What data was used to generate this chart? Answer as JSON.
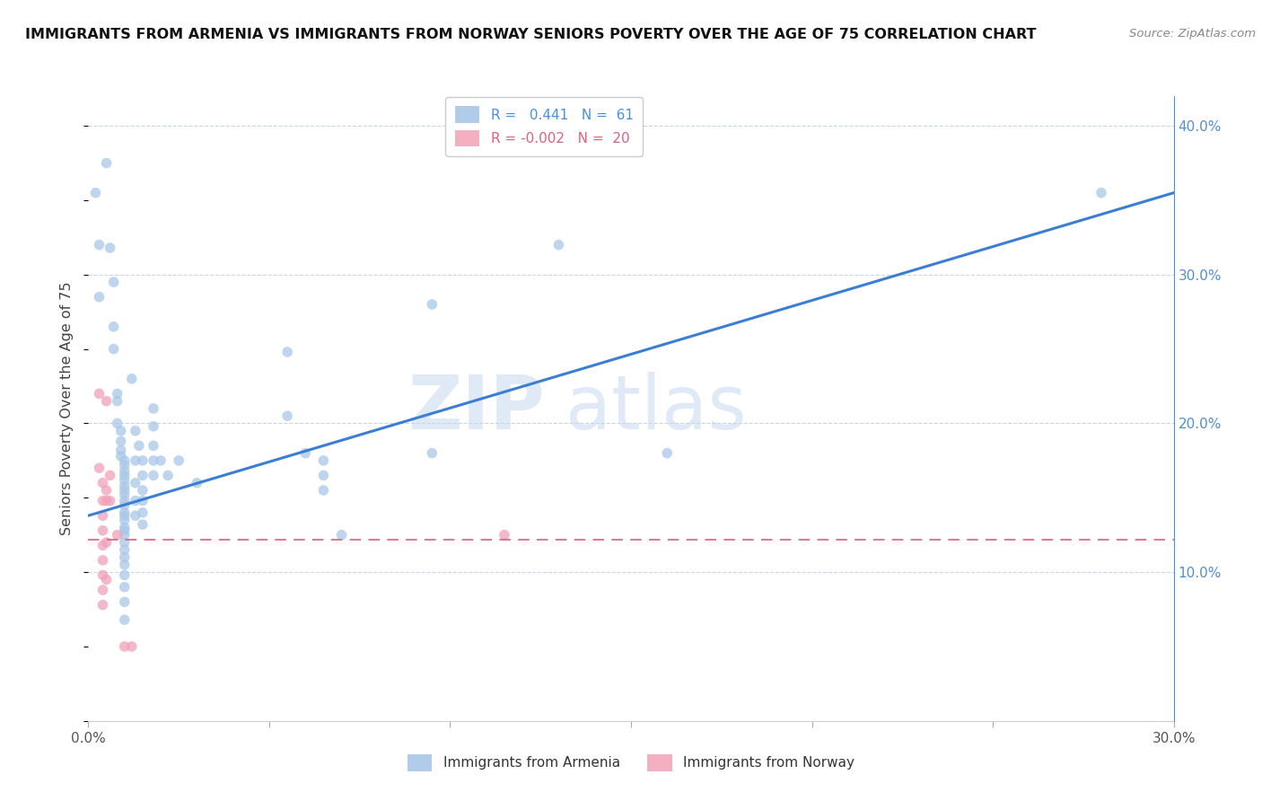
{
  "title": "IMMIGRANTS FROM ARMENIA VS IMMIGRANTS FROM NORWAY SENIORS POVERTY OVER THE AGE OF 75 CORRELATION CHART",
  "source": "Source: ZipAtlas.com",
  "ylabel": "Seniors Poverty Over the Age of 75",
  "xlim": [
    0.0,
    0.3
  ],
  "ylim": [
    0.0,
    0.42
  ],
  "armenia_color": "#a8c8e8",
  "norway_color": "#f0a0b8",
  "watermark_zip": "ZIP",
  "watermark_atlas": "atlas",
  "trendline_blue_color": "#3a7fd4",
  "trendline_pink_color": "#e06080",
  "background_color": "#ffffff",
  "grid_color": "#c8d4e8",
  "dot_size": 70,
  "blue_line_x0": 0.0,
  "blue_line_y0": 0.138,
  "blue_line_x1": 0.3,
  "blue_line_y1": 0.355,
  "pink_line_y": 0.122,
  "armenia_points": [
    [
      0.002,
      0.355
    ],
    [
      0.003,
      0.32
    ],
    [
      0.003,
      0.285
    ],
    [
      0.005,
      0.375
    ],
    [
      0.006,
      0.318
    ],
    [
      0.007,
      0.295
    ],
    [
      0.007,
      0.265
    ],
    [
      0.007,
      0.25
    ],
    [
      0.008,
      0.22
    ],
    [
      0.008,
      0.215
    ],
    [
      0.008,
      0.2
    ],
    [
      0.009,
      0.195
    ],
    [
      0.009,
      0.188
    ],
    [
      0.009,
      0.182
    ],
    [
      0.009,
      0.178
    ],
    [
      0.01,
      0.175
    ],
    [
      0.01,
      0.172
    ],
    [
      0.01,
      0.168
    ],
    [
      0.01,
      0.165
    ],
    [
      0.01,
      0.162
    ],
    [
      0.01,
      0.158
    ],
    [
      0.01,
      0.155
    ],
    [
      0.01,
      0.152
    ],
    [
      0.01,
      0.148
    ],
    [
      0.01,
      0.145
    ],
    [
      0.01,
      0.14
    ],
    [
      0.01,
      0.138
    ],
    [
      0.01,
      0.135
    ],
    [
      0.01,
      0.13
    ],
    [
      0.01,
      0.128
    ],
    [
      0.01,
      0.125
    ],
    [
      0.01,
      0.12
    ],
    [
      0.01,
      0.115
    ],
    [
      0.01,
      0.11
    ],
    [
      0.01,
      0.105
    ],
    [
      0.01,
      0.098
    ],
    [
      0.01,
      0.09
    ],
    [
      0.01,
      0.08
    ],
    [
      0.01,
      0.068
    ],
    [
      0.012,
      0.23
    ],
    [
      0.013,
      0.195
    ],
    [
      0.013,
      0.175
    ],
    [
      0.013,
      0.16
    ],
    [
      0.013,
      0.148
    ],
    [
      0.013,
      0.138
    ],
    [
      0.014,
      0.185
    ],
    [
      0.015,
      0.175
    ],
    [
      0.015,
      0.165
    ],
    [
      0.015,
      0.155
    ],
    [
      0.015,
      0.148
    ],
    [
      0.015,
      0.14
    ],
    [
      0.015,
      0.132
    ],
    [
      0.018,
      0.21
    ],
    [
      0.018,
      0.198
    ],
    [
      0.018,
      0.185
    ],
    [
      0.018,
      0.175
    ],
    [
      0.018,
      0.165
    ],
    [
      0.02,
      0.175
    ],
    [
      0.022,
      0.165
    ],
    [
      0.025,
      0.175
    ],
    [
      0.03,
      0.16
    ],
    [
      0.055,
      0.248
    ],
    [
      0.055,
      0.205
    ],
    [
      0.06,
      0.18
    ],
    [
      0.065,
      0.175
    ],
    [
      0.065,
      0.165
    ],
    [
      0.065,
      0.155
    ],
    [
      0.07,
      0.125
    ],
    [
      0.095,
      0.28
    ],
    [
      0.095,
      0.18
    ],
    [
      0.13,
      0.32
    ],
    [
      0.16,
      0.18
    ],
    [
      0.28,
      0.355
    ]
  ],
  "norway_points": [
    [
      0.003,
      0.22
    ],
    [
      0.003,
      0.17
    ],
    [
      0.004,
      0.16
    ],
    [
      0.004,
      0.148
    ],
    [
      0.004,
      0.138
    ],
    [
      0.004,
      0.128
    ],
    [
      0.004,
      0.118
    ],
    [
      0.004,
      0.108
    ],
    [
      0.004,
      0.098
    ],
    [
      0.004,
      0.088
    ],
    [
      0.004,
      0.078
    ],
    [
      0.005,
      0.215
    ],
    [
      0.005,
      0.155
    ],
    [
      0.005,
      0.148
    ],
    [
      0.005,
      0.12
    ],
    [
      0.005,
      0.095
    ],
    [
      0.006,
      0.165
    ],
    [
      0.006,
      0.148
    ],
    [
      0.008,
      0.125
    ],
    [
      0.01,
      0.05
    ],
    [
      0.012,
      0.05
    ],
    [
      0.115,
      0.125
    ]
  ]
}
